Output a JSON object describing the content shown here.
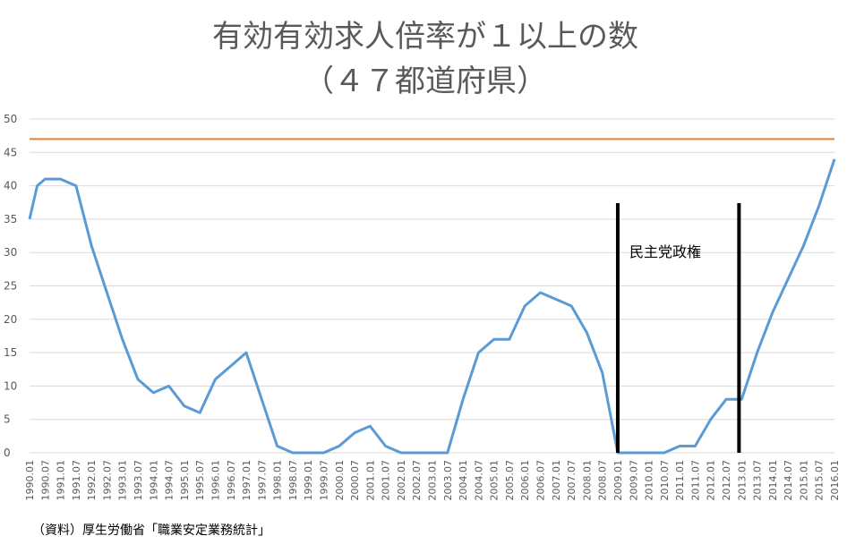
{
  "chart_data": {
    "type": "line",
    "title": "有効有効求人倍率が１以上の数",
    "subtitle": "（４７都道府県）",
    "source": "（資料）厚生労働省「職業安定業務統計」",
    "annotation": "民主党政権",
    "annotation_range": [
      "2009.01",
      "2012.12"
    ],
    "reference_line": {
      "value": 47,
      "color": "#ED7D31"
    },
    "ylim": [
      0,
      50
    ],
    "yticks": [
      "0",
      "5",
      "10",
      "15",
      "20",
      "25",
      "30",
      "35",
      "40",
      "45",
      "50"
    ],
    "xlim": [
      "1990.01",
      "2016.01"
    ],
    "xticks": [
      "1990.01",
      "1990.07",
      "1991.01",
      "1991.07",
      "1992.01",
      "1992.07",
      "1993.01",
      "1993.07",
      "1994.01",
      "1994.07",
      "1995.01",
      "1995.07",
      "1996.01",
      "1996.07",
      "1997.01",
      "1997.07",
      "1998.01",
      "1998.07",
      "1999.01",
      "1999.07",
      "2000.01",
      "2000.07",
      "2001.01",
      "2001.07",
      "2002.01",
      "2002.07",
      "2003.01",
      "2003.07",
      "2004.01",
      "2004.07",
      "2005.01",
      "2005.07",
      "2006.01",
      "2006.07",
      "2007.01",
      "2007.07",
      "2008.01",
      "2008.07",
      "2009.01",
      "2009.07",
      "2010.01",
      "2010.07",
      "2011.01",
      "2011.07",
      "2012.01",
      "2012.07",
      "2013.01",
      "2013.07",
      "2014.01",
      "2014.07",
      "2015.01",
      "2015.07",
      "2016.01"
    ],
    "grid": true,
    "series": [
      {
        "color": "#5B9BD5",
        "x": [
          "1990.01",
          "1990.04",
          "1990.07",
          "1991.01",
          "1991.07",
          "1992.01",
          "1992.07",
          "1993.01",
          "1993.07",
          "1994.01",
          "1994.07",
          "1995.01",
          "1995.07",
          "1996.01",
          "1996.07",
          "1997.01",
          "1997.07",
          "1998.01",
          "1998.07",
          "1999.01",
          "1999.07",
          "2000.01",
          "2000.07",
          "2001.01",
          "2001.07",
          "2002.01",
          "2002.07",
          "2003.01",
          "2003.07",
          "2004.01",
          "2004.07",
          "2005.01",
          "2005.07",
          "2006.01",
          "2006.07",
          "2007.01",
          "2007.07",
          "2008.01",
          "2008.07",
          "2009.01",
          "2009.07",
          "2010.01",
          "2010.07",
          "2011.01",
          "2011.07",
          "2012.01",
          "2012.07",
          "2013.01",
          "2013.07",
          "2014.01",
          "2014.07",
          "2015.01",
          "2015.07",
          "2016.01"
        ],
        "values": [
          35,
          40,
          41,
          41,
          40,
          31,
          24,
          17,
          11,
          9,
          10,
          7,
          6,
          11,
          13,
          15,
          8,
          1,
          0,
          0,
          0,
          1,
          3,
          4,
          1,
          0,
          0,
          0,
          0,
          8,
          15,
          17,
          17,
          22,
          24,
          23,
          22,
          18,
          12,
          0,
          0,
          0,
          0,
          1,
          1,
          5,
          8,
          8,
          15,
          21,
          26,
          31,
          37,
          44
        ]
      }
    ]
  }
}
